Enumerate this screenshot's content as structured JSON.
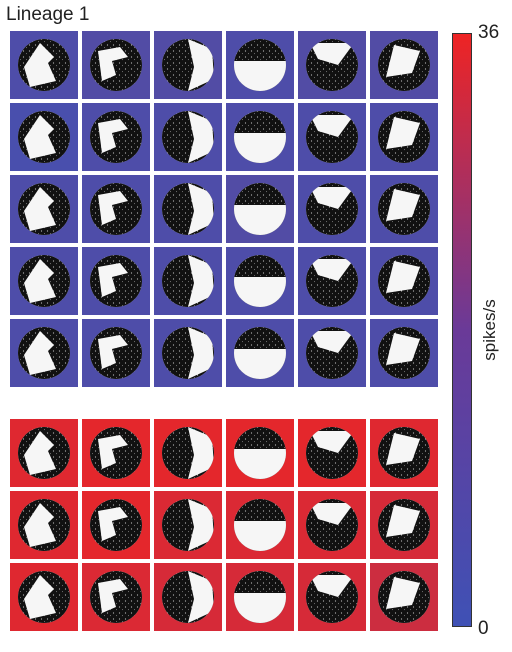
{
  "title": "Lineage 1",
  "colorbar": {
    "label": "spikes/s",
    "max_label": "36",
    "min_label": "0",
    "min": 0,
    "max": 36,
    "color_low": "#3f51b5",
    "color_high": "#ee2424"
  },
  "chart_data": {
    "type": "heatmap",
    "title": "Lineage 1",
    "colorbar_label": "spikes/s",
    "range": [
      0,
      36
    ],
    "groups": [
      {
        "rows": 5,
        "cols": 6,
        "responses": [
          [
            3,
            4,
            4,
            3,
            4,
            4
          ],
          [
            2,
            3,
            3,
            3,
            3,
            3
          ],
          [
            3,
            3,
            3,
            4,
            3,
            3
          ],
          [
            3,
            3,
            3,
            3,
            3,
            3
          ],
          [
            3,
            3,
            3,
            3,
            3,
            3
          ]
        ]
      },
      {
        "rows": 3,
        "cols": 6,
        "responses": [
          [
            33,
            34,
            34,
            34,
            34,
            33
          ],
          [
            33,
            34,
            32,
            32,
            32,
            31
          ],
          [
            33,
            32,
            31,
            31,
            31,
            29
          ]
        ]
      }
    ]
  }
}
